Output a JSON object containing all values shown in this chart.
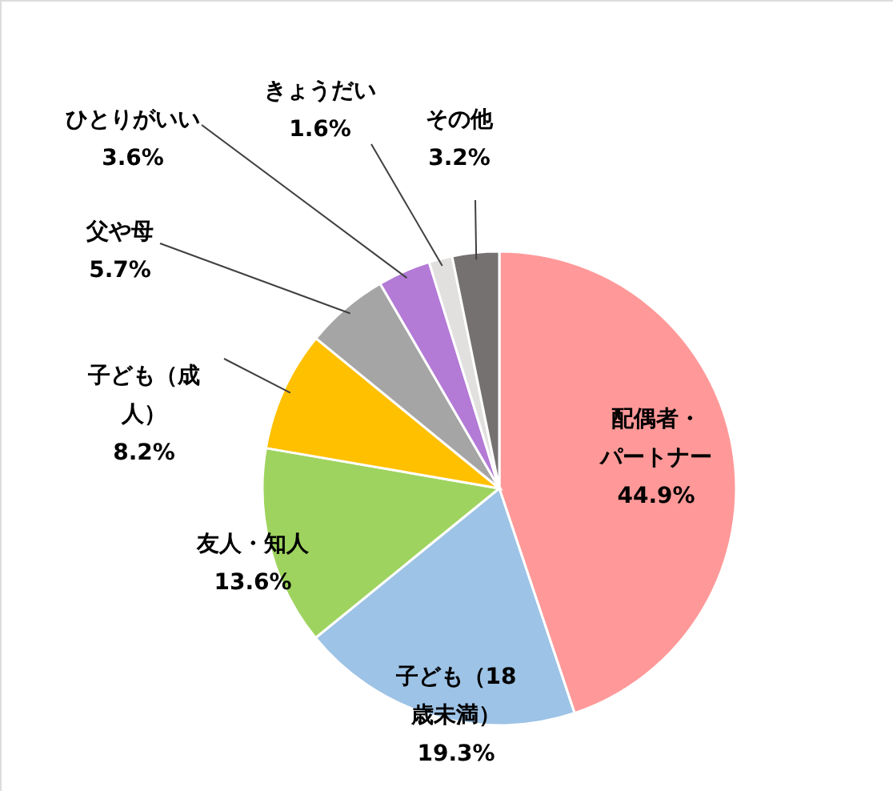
{
  "chart_data": {
    "type": "pie",
    "categories": [
      "配偶者・パートナー",
      "子ども（18歳未満）",
      "友人・知人",
      "子ども（成人）",
      "父や母",
      "ひとりがいい",
      "きょうだい",
      "その他"
    ],
    "values": [
      44.9,
      19.3,
      13.6,
      8.2,
      5.7,
      3.6,
      1.6,
      3.2
    ],
    "colors": [
      "#ff9999",
      "#9dc3e6",
      "#9fd35f",
      "#ffc000",
      "#a5a5a5",
      "#b37ad6",
      "#e2dfdf",
      "#767171"
    ],
    "value_labels": [
      "44.9%",
      "19.3%",
      "13.6%",
      "8.2%",
      "5.7%",
      "3.6%",
      "1.6%",
      "3.2%"
    ]
  }
}
